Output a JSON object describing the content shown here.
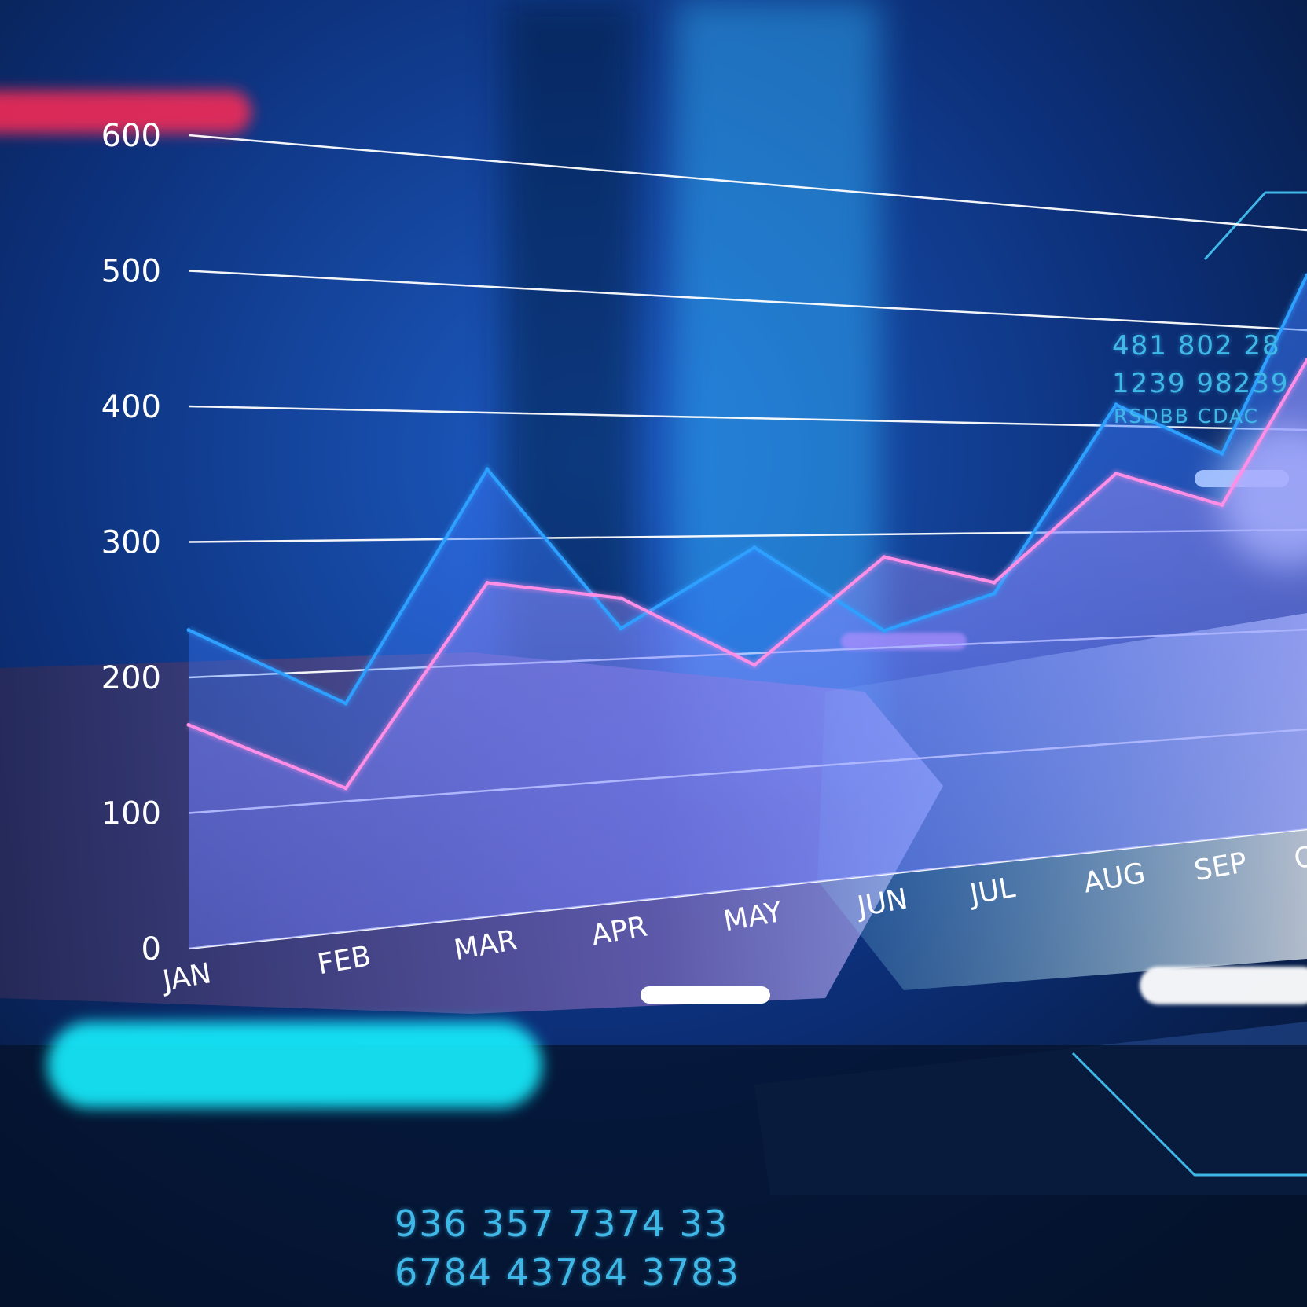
{
  "colors": {
    "series_blue": "#2ea0ff",
    "series_pink": "#ff8fe6",
    "grid": "#ffffff",
    "hud_text": "#3fb8e8",
    "glow_red": "#ff2a55",
    "glow_cyan": "#19f0ff"
  },
  "chart_data": {
    "type": "line",
    "categories": [
      "JAN",
      "FEB",
      "MAR",
      "APR",
      "MAY",
      "JUN",
      "JUL",
      "AUG",
      "SEP",
      "O"
    ],
    "yticks": [
      "0",
      "100",
      "200",
      "300",
      "400",
      "500",
      "600"
    ],
    "ylim": [
      0,
      600
    ],
    "grid": true,
    "series": [
      {
        "color": "#2ea0ff",
        "values": [
          235,
          175,
          355,
          225,
          290,
          215,
          245,
          420,
          375,
          555
        ]
      },
      {
        "color": "#ff8fe6",
        "values": [
          165,
          110,
          265,
          250,
          190,
          280,
          255,
          355,
          325,
          470
        ]
      }
    ]
  },
  "hud": {
    "top_right": {
      "line1": "481   802   28",
      "line2": "1239   98239",
      "line3": "RSDBB CDAC"
    },
    "bottom": {
      "line1": "936   357   7374   33",
      "line2": "6784   43784   3783"
    }
  }
}
